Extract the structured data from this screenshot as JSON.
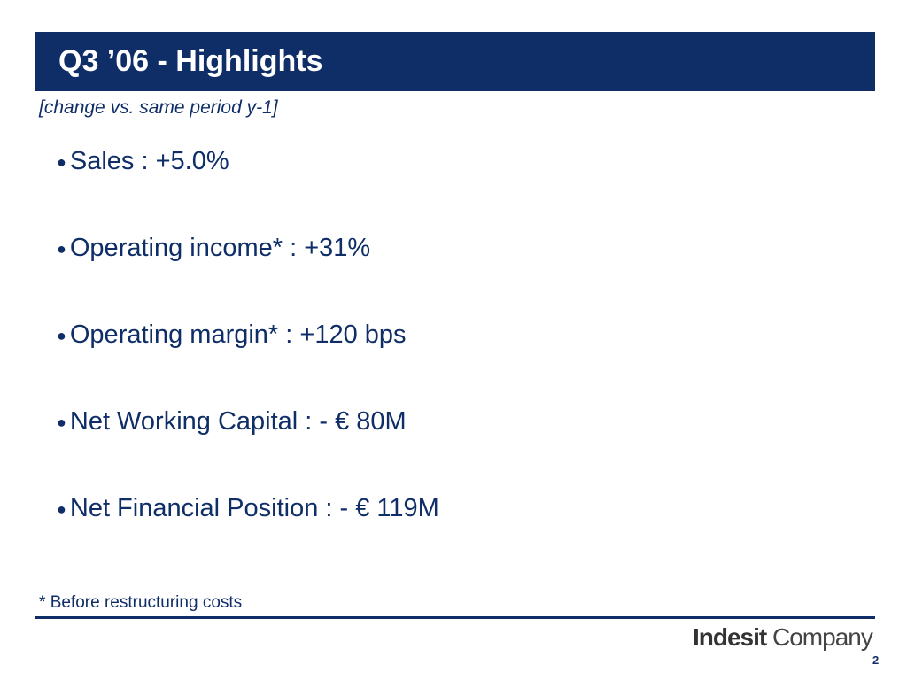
{
  "header": {
    "title": "Q3 ’06 - Highlights",
    "subtitle": "[change vs. same period y-1]"
  },
  "bullets": [
    "Sales : +5.0%",
    "Operating income* : +31%",
    "Operating margin* : +120 bps",
    "Net Working Capital : - € 80M",
    "Net Financial Position : - € 119M"
  ],
  "footnote": {
    "marker": "*",
    "text": "Before restructuring costs"
  },
  "logo": {
    "bold": "Indesit",
    "light": "Company"
  },
  "page_number": "2"
}
